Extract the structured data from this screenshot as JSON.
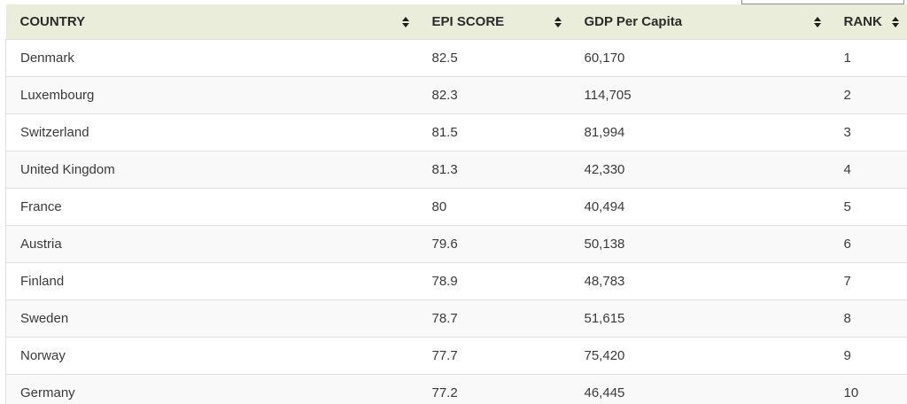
{
  "search_box": {
    "value": ""
  },
  "table": {
    "headers": {
      "country": "COUNTRY",
      "epi_score": "EPI SCORE",
      "gdp_per_capita": "GDP Per Capita",
      "rank": "RANK"
    },
    "rows": [
      {
        "country": "Denmark",
        "epi_score": "82.5",
        "gdp_per_capita": "60,170",
        "rank": "1"
      },
      {
        "country": "Luxembourg",
        "epi_score": "82.3",
        "gdp_per_capita": "114,705",
        "rank": "2"
      },
      {
        "country": "Switzerland",
        "epi_score": "81.5",
        "gdp_per_capita": "81,994",
        "rank": "3"
      },
      {
        "country": "United Kingdom",
        "epi_score": "81.3",
        "gdp_per_capita": "42,330",
        "rank": "4"
      },
      {
        "country": "France",
        "epi_score": "80",
        "gdp_per_capita": "40,494",
        "rank": "5"
      },
      {
        "country": "Austria",
        "epi_score": "79.6",
        "gdp_per_capita": "50,138",
        "rank": "6"
      },
      {
        "country": "Finland",
        "epi_score": "78.9",
        "gdp_per_capita": "48,783",
        "rank": "7"
      },
      {
        "country": "Sweden",
        "epi_score": "78.7",
        "gdp_per_capita": "51,615",
        "rank": "8"
      },
      {
        "country": "Norway",
        "epi_score": "77.7",
        "gdp_per_capita": "75,420",
        "rank": "9"
      },
      {
        "country": "Germany",
        "epi_score": "77.2",
        "gdp_per_capita": "46,445",
        "rank": "10"
      }
    ]
  },
  "colors": {
    "header_bg": "#e9edd9",
    "row_stripe": "#f9f9f9",
    "row_border": "#e0e0e0",
    "text": "#3a3a3a"
  }
}
